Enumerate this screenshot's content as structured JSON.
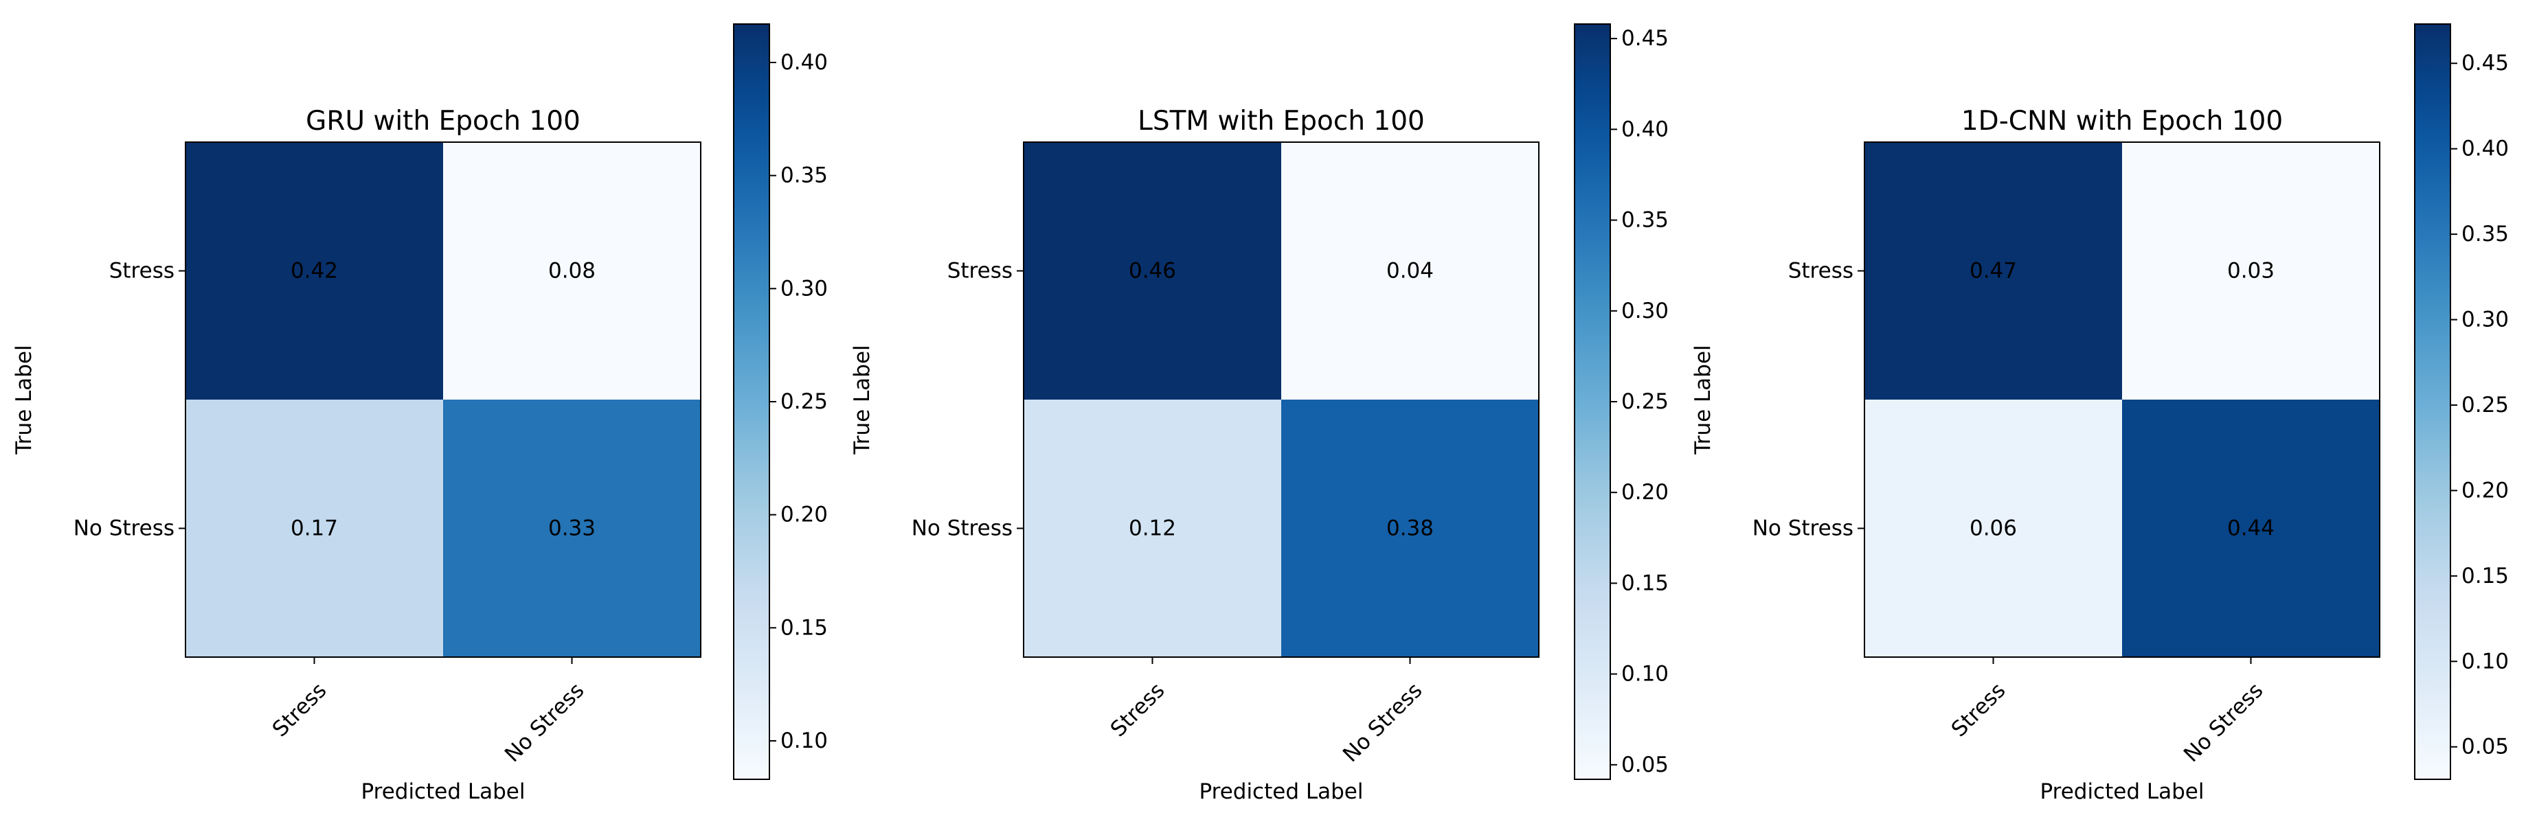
{
  "chart_data": [
    {
      "type": "heatmap",
      "title": "GRU with Epoch 100",
      "xlabel": "Predicted Label",
      "ylabel": "True Label",
      "x_categories": [
        "Stress",
        "No Stress"
      ],
      "y_categories": [
        "Stress",
        "No Stress"
      ],
      "values": [
        [
          0.42,
          0.08
        ],
        [
          0.17,
          0.33
        ]
      ],
      "colormap": "Blues",
      "colorbar": {
        "min": 0.083,
        "max": 0.417,
        "ticks": [
          0.1,
          0.15,
          0.2,
          0.25,
          0.3,
          0.35,
          0.4
        ]
      }
    },
    {
      "type": "heatmap",
      "title": "LSTM with Epoch 100",
      "xlabel": "Predicted Label",
      "ylabel": "True Label",
      "x_categories": [
        "Stress",
        "No Stress"
      ],
      "y_categories": [
        "Stress",
        "No Stress"
      ],
      "values": [
        [
          0.46,
          0.04
        ],
        [
          0.12,
          0.38
        ]
      ],
      "colormap": "Blues",
      "colorbar": {
        "min": 0.042,
        "max": 0.458,
        "ticks": [
          0.05,
          0.1,
          0.15,
          0.2,
          0.25,
          0.3,
          0.35,
          0.4,
          0.45
        ]
      }
    },
    {
      "type": "heatmap",
      "title": "1D-CNN with Epoch 100",
      "xlabel": "Predicted Label",
      "ylabel": "True Label",
      "x_categories": [
        "Stress",
        "No Stress"
      ],
      "y_categories": [
        "Stress",
        "No Stress"
      ],
      "values": [
        [
          0.47,
          0.03
        ],
        [
          0.06,
          0.44
        ]
      ],
      "colormap": "Blues",
      "colorbar": {
        "min": 0.031,
        "max": 0.473,
        "ticks": [
          0.05,
          0.1,
          0.15,
          0.2,
          0.25,
          0.3,
          0.35,
          0.4,
          0.45
        ]
      }
    }
  ]
}
